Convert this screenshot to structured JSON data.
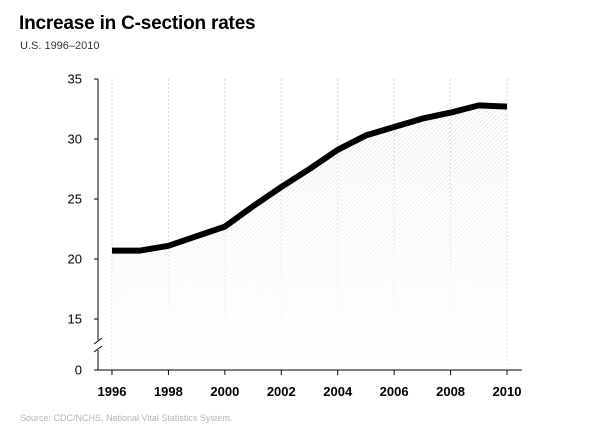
{
  "title": "Increase in C-section rates",
  "subtitle": "U.S. 1996–2010",
  "source": "Source: CDC/NCHS, National Vital Statistics System.",
  "colors": {
    "line": "#000000",
    "gridline": "#c8c8c8",
    "fill_pattern": "#d6d6d6",
    "axis": "#000000"
  },
  "chart_data": {
    "type": "area",
    "title": "Increase in C-section rates",
    "subtitle": "U.S. 1996–2010",
    "ylabel": "",
    "xlabel": "",
    "ylim": [
      0,
      35
    ],
    "y_axis_break": "between 0 and 15",
    "y_ticks": [
      "35",
      "30",
      "25",
      "20",
      "15",
      "0"
    ],
    "x_ticks": [
      "1996",
      "1998",
      "2000",
      "2002",
      "2004",
      "2006",
      "2008",
      "2010"
    ],
    "grid": "vertical dotted lines at each year tick",
    "x": [
      1996,
      1997,
      1998,
      1999,
      2000,
      2001,
      2002,
      2003,
      2004,
      2005,
      2006,
      2007,
      2008,
      2009,
      2010
    ],
    "series": [
      {
        "values": [
          20.7,
          20.7,
          21.1,
          21.9,
          22.7,
          24.4,
          26.0,
          27.5,
          29.1,
          30.3,
          31.0,
          31.7,
          32.2,
          32.8,
          32.7
        ]
      }
    ]
  }
}
